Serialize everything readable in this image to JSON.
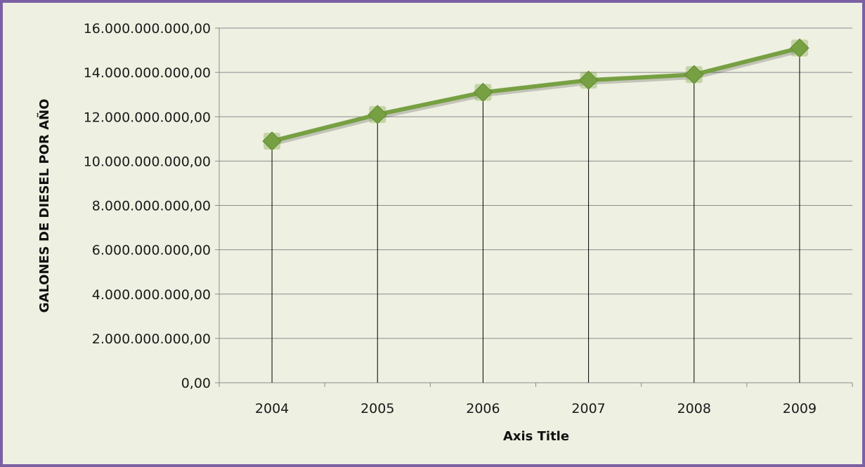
{
  "chart_data": {
    "type": "line",
    "title": "",
    "xlabel": "Axis Title",
    "ylabel": "GALONES DE DIESEL POR AÑO",
    "categories": [
      "2004",
      "2005",
      "2006",
      "2007",
      "2008",
      "2009"
    ],
    "series": [
      {
        "values": [
          10900000000,
          12100000000,
          13100000000,
          13650000000,
          13900000000,
          15100000000
        ]
      }
    ],
    "ylim": [
      0,
      16000000000
    ],
    "yticks": [
      0,
      2000000000,
      4000000000,
      6000000000,
      8000000000,
      10000000000,
      12000000000,
      14000000000,
      16000000000
    ],
    "ytick_labels": [
      "0,00",
      "2.000.000.000,00",
      "4.000.000.000,00",
      "6.000.000.000,00",
      "8.000.000.000,00",
      "10.000.000.000,00",
      "12.000.000.000,00",
      "14.000.000.000,00",
      "16.000.000.000,00"
    ],
    "grid": true,
    "drop_lines": true,
    "legend": "none",
    "colors": {
      "background": "#eef0e2",
      "border": "#7b61a4",
      "line": "#77a042",
      "marker": "#77a042",
      "gridline": "#8c8c8c",
      "drop_line": "#000000"
    }
  }
}
